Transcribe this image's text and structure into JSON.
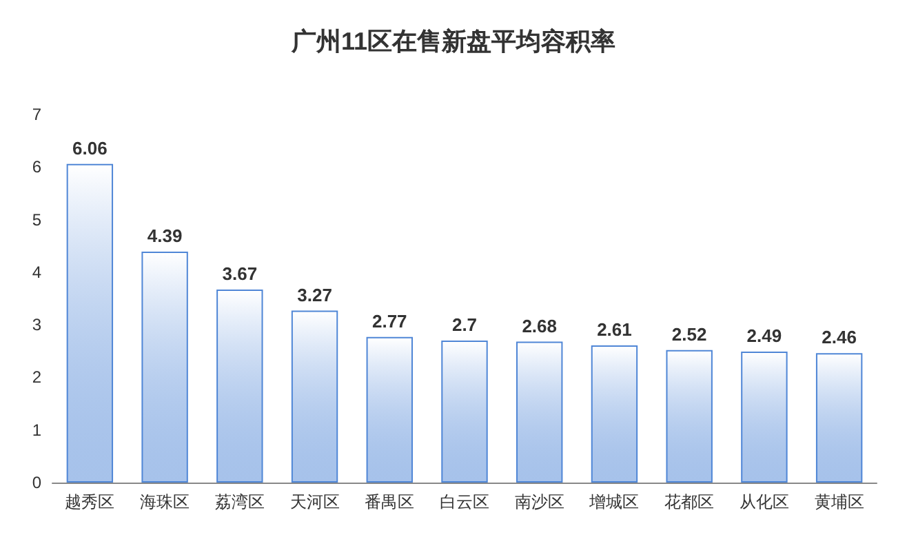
{
  "chart_data": {
    "type": "bar",
    "title": "广州11区在售新盘平均容积率",
    "categories": [
      "越秀区",
      "海珠区",
      "荔湾区",
      "天河区",
      "番禺区",
      "白云区",
      "南沙区",
      "增城区",
      "花都区",
      "从化区",
      "黄埔区"
    ],
    "values": [
      6.06,
      4.39,
      3.67,
      3.27,
      2.77,
      2.7,
      2.68,
      2.61,
      2.52,
      2.49,
      2.46
    ],
    "color": "#4f86d6",
    "data_labels": true,
    "ylim": [
      0,
      7
    ],
    "yticks": [
      0,
      1,
      2,
      3,
      4,
      5,
      6,
      7
    ],
    "grid": false
  }
}
